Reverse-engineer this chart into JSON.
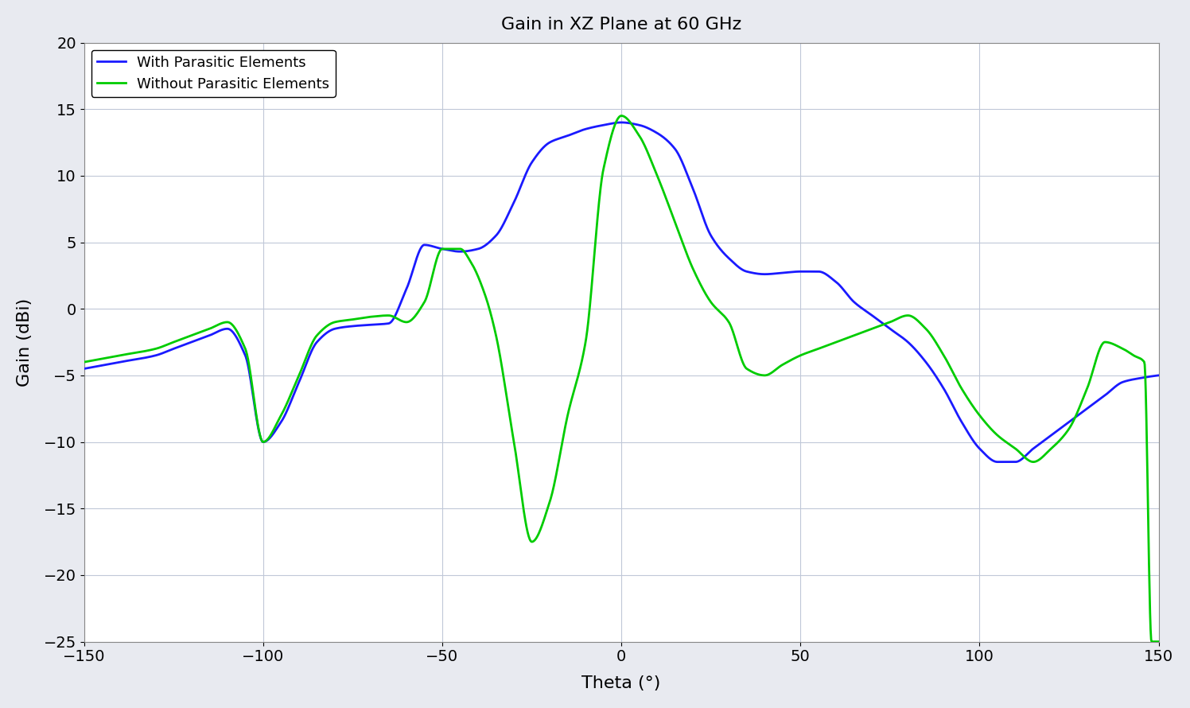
{
  "title": "Gain in XZ Plane at 60 GHz",
  "xlabel": "Theta (°)",
  "ylabel": "Gain (dBi)",
  "xlim": [
    -150,
    150
  ],
  "ylim": [
    -25,
    20
  ],
  "xticks": [
    -150,
    -100,
    -50,
    0,
    50,
    100,
    150
  ],
  "yticks": [
    -25,
    -20,
    -15,
    -10,
    -5,
    0,
    5,
    10,
    15,
    20
  ],
  "background_color": "#e8eaf0",
  "plot_background": "#ffffff",
  "grid_color": "#c0c8d8",
  "blue_color": "#1a1aff",
  "green_color": "#00cc00",
  "legend_labels": [
    "With Parasitic Elements",
    "Without Parasitic Elements"
  ],
  "blue_theta": [
    -150,
    -140,
    -130,
    -125,
    -120,
    -115,
    -110,
    -105,
    -100,
    -95,
    -90,
    -85,
    -80,
    -75,
    -70,
    -65,
    -60,
    -55,
    -50,
    -45,
    -40,
    -35,
    -30,
    -25,
    -20,
    -15,
    -10,
    -5,
    0,
    5,
    10,
    15,
    20,
    25,
    30,
    35,
    40,
    45,
    50,
    55,
    60,
    65,
    70,
    75,
    80,
    85,
    90,
    95,
    100,
    105,
    110,
    115,
    120,
    125,
    130,
    135,
    140,
    145,
    150
  ],
  "blue_gain": [
    -4.5,
    -4.0,
    -3.5,
    -3.0,
    -2.5,
    -2.0,
    -1.5,
    -3.5,
    -10.0,
    -8.5,
    -5.5,
    -2.5,
    -1.5,
    -1.3,
    -1.2,
    -1.1,
    1.5,
    4.8,
    4.5,
    4.3,
    4.5,
    5.5,
    8.0,
    11.0,
    12.5,
    13.0,
    13.5,
    13.8,
    14.0,
    13.8,
    13.2,
    12.0,
    9.0,
    5.5,
    3.8,
    2.8,
    2.6,
    2.7,
    2.8,
    2.8,
    2.0,
    0.5,
    -0.5,
    -1.5,
    -2.5,
    -4.0,
    -6.0,
    -8.5,
    -10.5,
    -11.5,
    -11.5,
    -10.5,
    -9.5,
    -8.5,
    -7.5,
    -6.5,
    -5.5,
    -5.2,
    -5.0
  ],
  "green_theta": [
    -150,
    -140,
    -130,
    -125,
    -120,
    -115,
    -110,
    -105,
    -100,
    -95,
    -90,
    -85,
    -80,
    -75,
    -70,
    -65,
    -60,
    -55,
    -50,
    -45,
    -42,
    -38,
    -35,
    -30,
    -25,
    -20,
    -15,
    -10,
    -5,
    0,
    5,
    10,
    15,
    20,
    25,
    30,
    35,
    40,
    45,
    50,
    55,
    60,
    65,
    70,
    75,
    80,
    85,
    90,
    95,
    100,
    105,
    110,
    115,
    120,
    125,
    130,
    135,
    140,
    143,
    146,
    148,
    150
  ],
  "green_gain": [
    -4.0,
    -3.5,
    -3.0,
    -2.5,
    -2.0,
    -1.5,
    -1.0,
    -3.0,
    -10.0,
    -8.0,
    -5.0,
    -2.0,
    -1.0,
    -0.8,
    -0.6,
    -0.5,
    -1.0,
    0.5,
    4.5,
    4.5,
    3.5,
    1.0,
    -2.0,
    -10.0,
    -17.5,
    -14.5,
    -8.0,
    -2.5,
    10.5,
    14.5,
    13.0,
    10.0,
    6.5,
    3.0,
    0.5,
    -1.0,
    -4.5,
    -5.0,
    -4.2,
    -3.5,
    -3.0,
    -2.5,
    -2.0,
    -1.5,
    -1.0,
    -0.5,
    -1.5,
    -3.5,
    -6.0,
    -8.0,
    -9.5,
    -10.5,
    -11.5,
    -10.5,
    -9.0,
    -6.0,
    -2.5,
    -3.0,
    -3.5,
    -4.0,
    -25.0,
    -25.0
  ]
}
